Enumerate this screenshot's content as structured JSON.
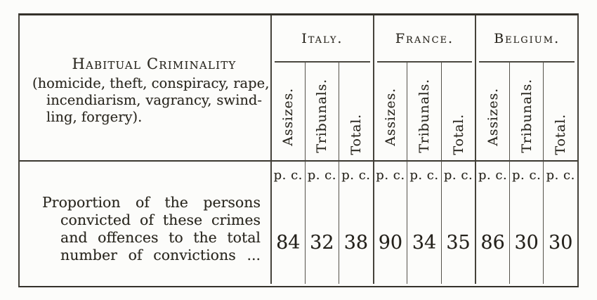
{
  "page": {
    "background": "#fbfbf9",
    "ink": "#2b2820",
    "rule_color": "#45423a"
  },
  "table": {
    "header": {
      "title": "Habitual Criminality",
      "subtitle_lines": [
        "(homicide, theft, conspiracy, rape,",
        "incendiarism, vagrancy, swind-",
        "ling, forgery)."
      ]
    },
    "subcolumns": [
      "Assizes.",
      "Tribunals.",
      "Total."
    ],
    "groups": [
      {
        "country": "Italy.",
        "values": [
          "84",
          "32",
          "38"
        ]
      },
      {
        "country": "France.",
        "values": [
          "90",
          "34",
          "35"
        ]
      },
      {
        "country": "Belgium.",
        "values": [
          "86",
          "30",
          "30"
        ]
      }
    ],
    "data_row": {
      "label_lines": [
        "Proportion of the persons",
        "convicted of these crimes",
        "and offences to the total",
        "number of convictions ..."
      ],
      "unit": "p. c."
    }
  }
}
